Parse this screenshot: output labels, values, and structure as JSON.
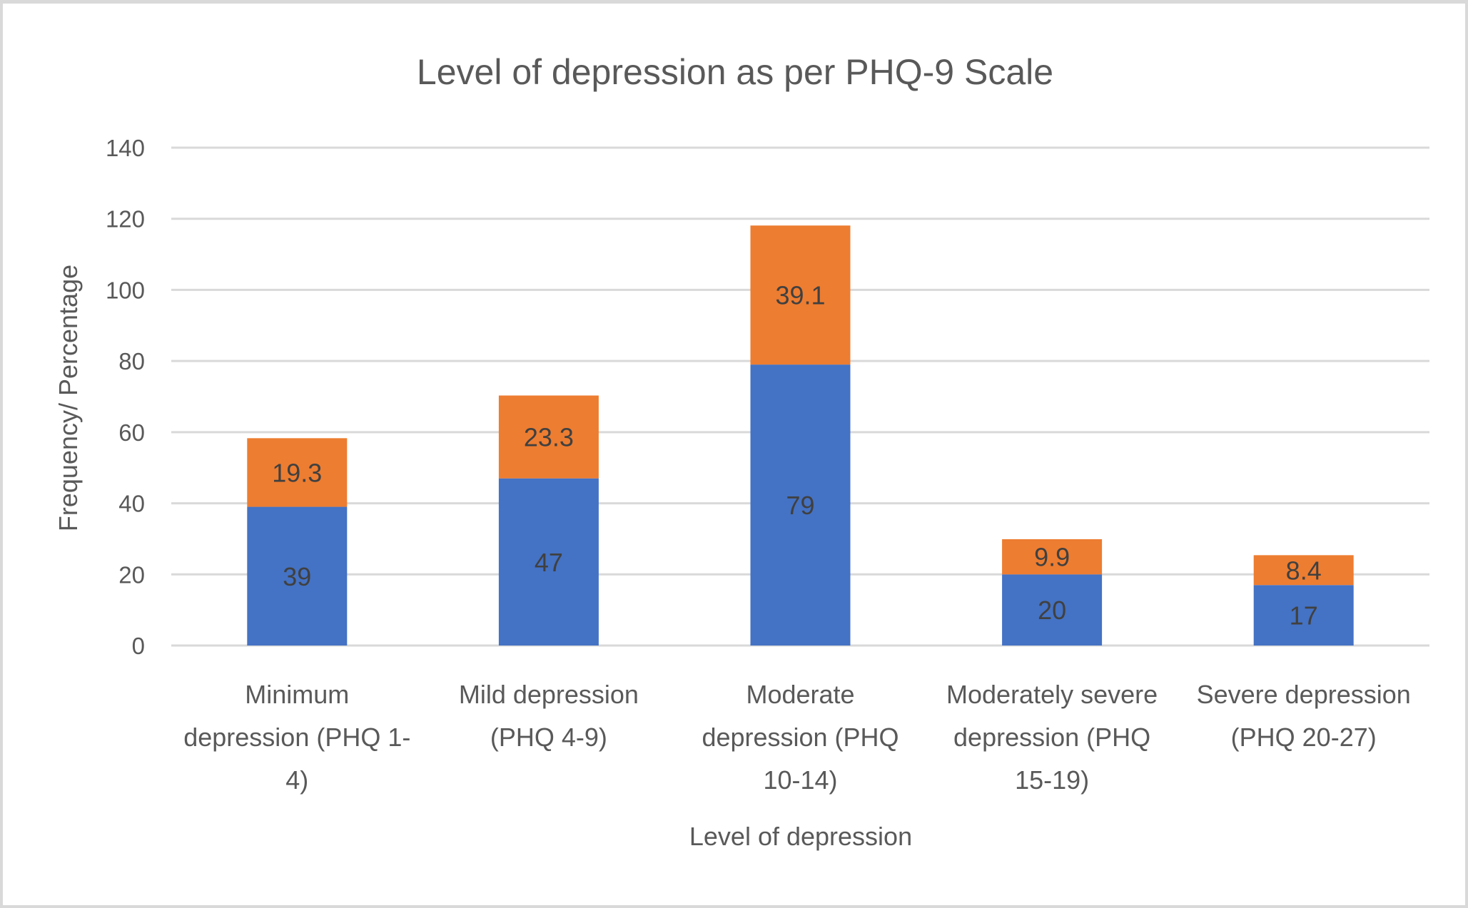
{
  "chart_data": {
    "type": "bar",
    "stacked": true,
    "title": "Level of depression as per PHQ-9 Scale",
    "xlabel": "Level of depression",
    "ylabel": "Frequency/ Percentage",
    "ylim": [
      0,
      140
    ],
    "yticks": [
      0,
      20,
      40,
      60,
      80,
      100,
      120,
      140
    ],
    "grid": true,
    "legend": "none",
    "categories": [
      "Minimum depression (PHQ 1-4)",
      "Mild depression (PHQ 4-9)",
      "Moderate depression (PHQ 10-14)",
      "Moderately severe depression (PHQ 15-19)",
      "Severe depression (PHQ 20-27)"
    ],
    "category_lines": [
      [
        "Minimum",
        "depression (PHQ 1-",
        "4)"
      ],
      [
        "Mild depression",
        "(PHQ 4-9)"
      ],
      [
        "Moderate",
        "depression (PHQ",
        "10-14)"
      ],
      [
        "Moderately severe",
        "depression (PHQ",
        "15-19)"
      ],
      [
        "Severe depression",
        "(PHQ 20-27)"
      ]
    ],
    "series": [
      {
        "key": "frequency",
        "color": "#4472C4",
        "values": [
          39,
          47,
          79,
          20,
          17
        ]
      },
      {
        "key": "percentage",
        "color": "#ED7D31",
        "values": [
          19.3,
          23.3,
          39.1,
          9.9,
          8.4
        ]
      }
    ]
  }
}
